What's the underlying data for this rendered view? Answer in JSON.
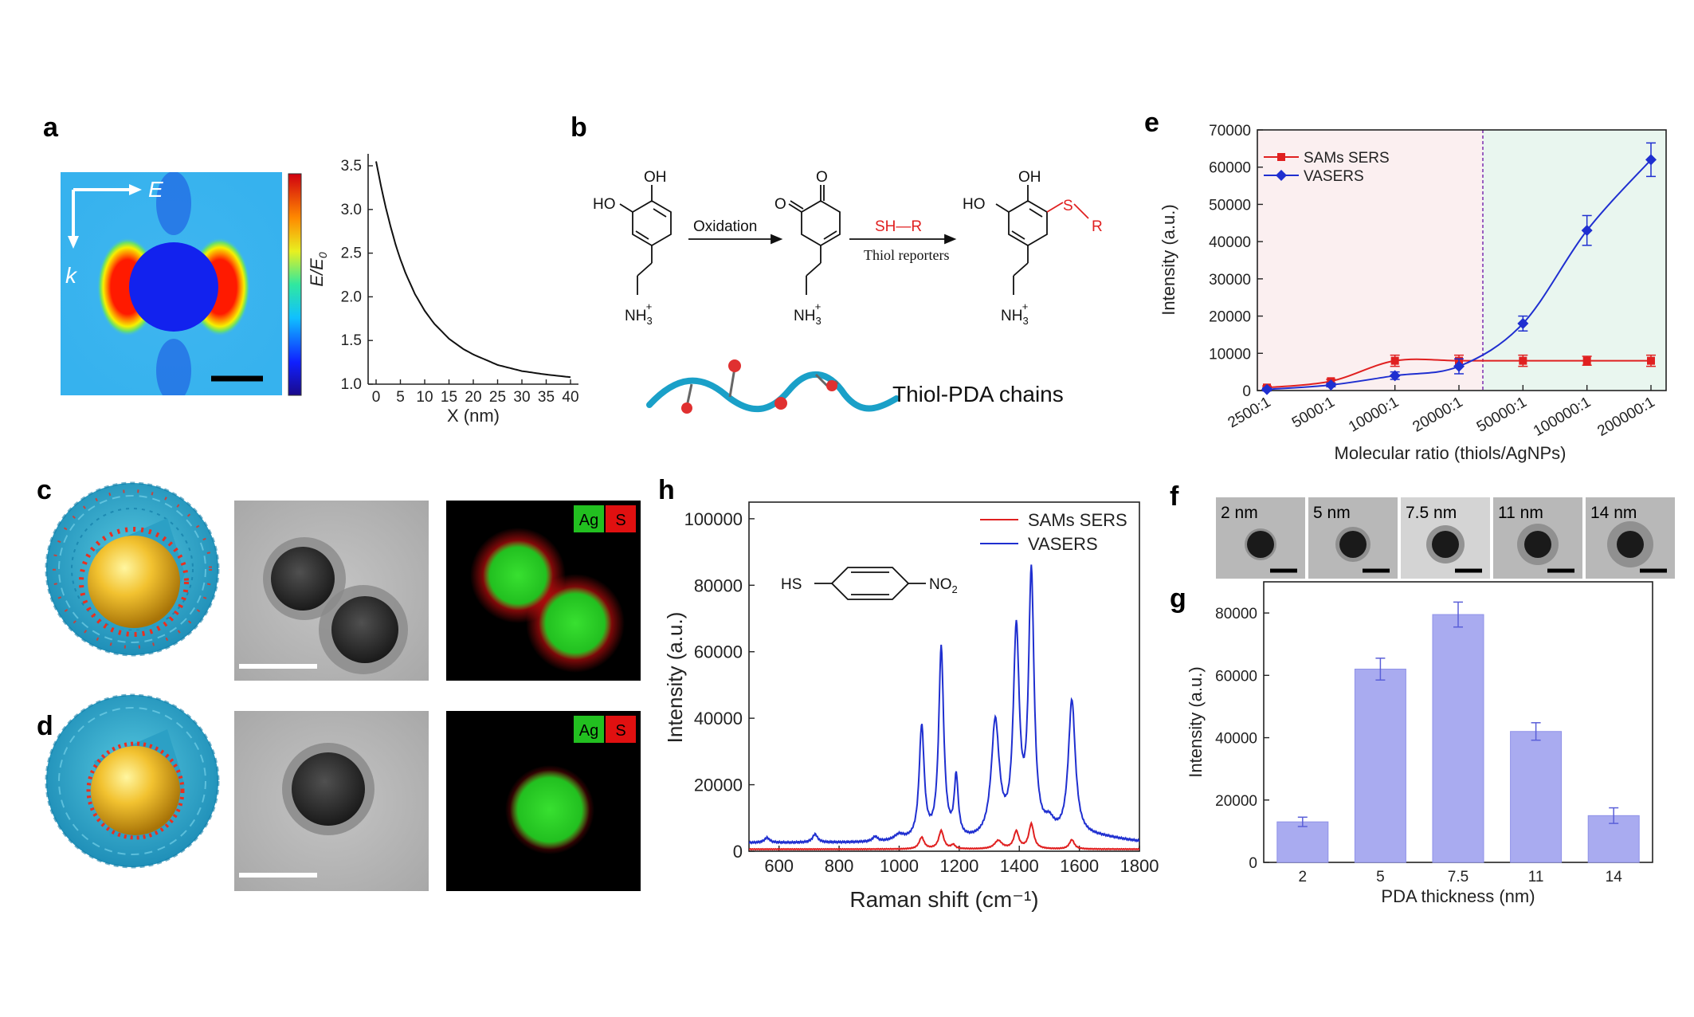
{
  "panels": {
    "a": "a",
    "b": "b",
    "c": "c",
    "d": "d",
    "e": "e",
    "f": "f",
    "g": "g",
    "h": "h"
  },
  "panel_a": {
    "field_arrow_e": "E",
    "field_arrow_k": "k",
    "decay_ylabel": "E/E",
    "decay_ylabel_sub": "0",
    "decay_xlabel": "X (nm)",
    "decay_xticks": [
      "0",
      "5",
      "10",
      "15",
      "20",
      "25",
      "30",
      "35",
      "40"
    ],
    "decay_yticks": [
      "1.0",
      "1.5",
      "2.0",
      "2.5",
      "3.0",
      "3.5"
    ]
  },
  "panel_b": {
    "step1": "Oxidation",
    "reagent": "SH—R",
    "step2": "Thiol reporters",
    "chain_label": "Thiol-PDA chains",
    "ho": "HO",
    "oh": "OH",
    "o": "O",
    "nh3": "NH",
    "sub3": "3",
    "plus": "+",
    "s": "S",
    "r": "R"
  },
  "panel_cd": {
    "legend_ag": "Ag",
    "legend_s": "S"
  },
  "panel_f": {
    "thickness_labels": [
      "2 nm",
      "5 nm",
      "7.5 nm",
      "11 nm",
      "14 nm"
    ]
  },
  "panel_h": {
    "molecule_left": "HS",
    "molecule_right": "NO",
    "molecule_sub": "2"
  },
  "colors": {
    "sams": "#e02020",
    "vasers": "#1f2fd0",
    "bars": "#a9abf0",
    "zone_left": "#fbeff0",
    "zone_right": "#e9f6ef"
  },
  "chart_data": [
    {
      "id": "a-decay",
      "type": "line",
      "xlabel": "X (nm)",
      "ylabel": "E/E0",
      "xlim": [
        0,
        40
      ],
      "ylim": [
        1.0,
        3.7
      ],
      "x": [
        0,
        1,
        2,
        3,
        4,
        5,
        6,
        8,
        10,
        12,
        15,
        18,
        20,
        25,
        30,
        35,
        40
      ],
      "values": [
        3.55,
        3.27,
        3.02,
        2.8,
        2.6,
        2.43,
        2.28,
        2.03,
        1.84,
        1.69,
        1.52,
        1.4,
        1.34,
        1.22,
        1.15,
        1.11,
        1.08
      ]
    },
    {
      "id": "e-ratio",
      "type": "line",
      "xlabel": "Molecular ratio (thiols/AgNPs)",
      "ylabel": "Intensity (a.u.)",
      "categories": [
        "2500:1",
        "5000:1",
        "10000:1",
        "20000:1",
        "50000:1",
        "100000:1",
        "200000:1"
      ],
      "ylim": [
        0,
        70000
      ],
      "yticks": [
        "0",
        "10000",
        "20000",
        "30000",
        "40000",
        "50000",
        "60000",
        "70000"
      ],
      "series": [
        {
          "name": "SAMs SERS",
          "values": [
            800,
            2500,
            8000,
            8000,
            8000,
            8000,
            8000
          ],
          "errors": [
            400,
            500,
            1500,
            1500,
            1500,
            1200,
            1500
          ]
        },
        {
          "name": "VASERS",
          "values": [
            300,
            1500,
            4000,
            6500,
            18000,
            43000,
            62000
          ],
          "errors": [
            400,
            500,
            1000,
            2000,
            2000,
            4000,
            4500
          ]
        }
      ]
    },
    {
      "id": "g-thickness",
      "type": "bar",
      "xlabel": "PDA thickness (nm)",
      "ylabel": "Intensity (a.u.)",
      "categories": [
        "2",
        "5",
        "7.5",
        "11",
        "14"
      ],
      "values": [
        13000,
        62000,
        79500,
        42000,
        15000
      ],
      "errors": [
        1500,
        3500,
        4000,
        2800,
        2500
      ],
      "ylim": [
        0,
        90000
      ],
      "yticks": [
        "0",
        "20000",
        "40000",
        "60000",
        "80000"
      ]
    },
    {
      "id": "h-raman",
      "type": "line",
      "xlabel": "Raman shift (cm⁻¹)",
      "ylabel": "Intensity (a.u.)",
      "xlim": [
        500,
        1800
      ],
      "ylim": [
        0,
        105000
      ],
      "xticks": [
        "600",
        "800",
        "1000",
        "1200",
        "1400",
        "1600",
        "1800"
      ],
      "yticks": [
        "0",
        "20000",
        "40000",
        "60000",
        "80000",
        "100000"
      ],
      "series": [
        {
          "name": "SAMs SERS",
          "baseline": 600,
          "peaks": [
            [
              1075,
              3500,
              10
            ],
            [
              1140,
              5500,
              10
            ],
            [
              1180,
              1200,
              8
            ],
            [
              1330,
              2500,
              15
            ],
            [
              1390,
              5200,
              10
            ],
            [
              1440,
              7500,
              10
            ],
            [
              1575,
              2800,
              10
            ]
          ]
        },
        {
          "name": "VASERS",
          "baseline": 2500,
          "peaks": [
            [
              560,
              1500,
              10
            ],
            [
              720,
              2500,
              10
            ],
            [
              920,
              1500,
              10
            ],
            [
              1000,
              1800,
              20
            ],
            [
              1075,
              34000,
              10
            ],
            [
              1140,
              57500,
              10
            ],
            [
              1190,
              18000,
              8
            ],
            [
              1320,
              35000,
              16
            ],
            [
              1390,
              61000,
              12
            ],
            [
              1440,
              78500,
              11
            ],
            [
              1500,
              4000,
              20
            ],
            [
              1575,
              41000,
              14
            ]
          ]
        }
      ]
    }
  ]
}
